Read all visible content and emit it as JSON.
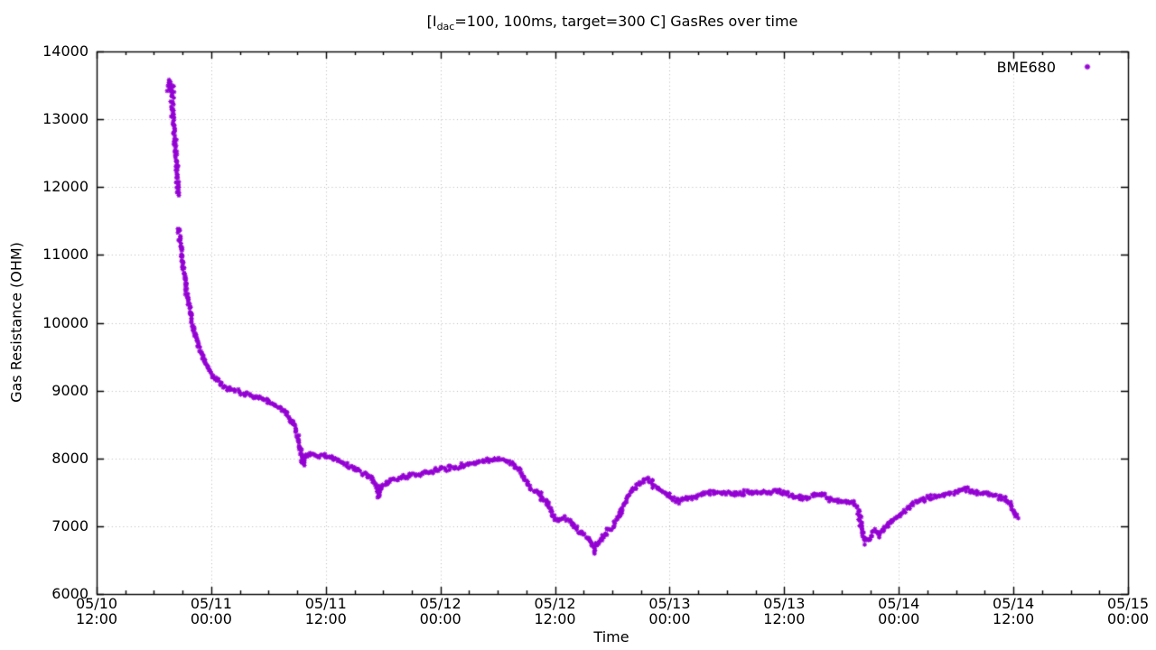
{
  "title": {
    "part1": "[I",
    "subscript": "dac",
    "part2": "=100, 100ms, target=300 C] GasRes over time"
  },
  "y_axis": {
    "label": "Gas Resistance (OHM)",
    "tick_labels": [
      "6000",
      "7000",
      "8000",
      "9000",
      "10000",
      "11000",
      "12000",
      "13000",
      "14000"
    ]
  },
  "x_axis": {
    "label": "Time",
    "tick_labels": [
      {
        "date": "05/10",
        "time": "12:00"
      },
      {
        "date": "05/11",
        "time": "00:00"
      },
      {
        "date": "05/11",
        "time": "12:00"
      },
      {
        "date": "05/12",
        "time": "00:00"
      },
      {
        "date": "05/12",
        "time": "12:00"
      },
      {
        "date": "05/13",
        "time": "00:00"
      },
      {
        "date": "05/13",
        "time": "12:00"
      },
      {
        "date": "05/14",
        "time": "00:00"
      },
      {
        "date": "05/14",
        "time": "12:00"
      },
      {
        "date": "05/15",
        "time": "00:00"
      }
    ]
  },
  "legend": {
    "label": "BME680",
    "marker": "asterisk-icon",
    "color": "#9400D3",
    "position": "top-right"
  },
  "chart_data": {
    "type": "scatter",
    "title": "[I_dac=100, 100ms, target=300 C] GasRes over time",
    "xlabel": "Time",
    "ylabel": "Gas Resistance (OHM)",
    "ylim": [
      6000,
      14000
    ],
    "ytick_step": 1000,
    "x_hours_span": 108,
    "x_start_label": "05/10 12:00",
    "x_end_label": "05/15 00:00",
    "x_major_tick_hours": 12,
    "x_minor_tick_hours": 3,
    "grid": "dotted",
    "points_format": [
      "hours_since_05/10_12:00",
      "gas_resistance_ohm"
    ],
    "scatter_band_ohm": 35,
    "series": [
      {
        "name": "BME680",
        "color": "#9400D3",
        "marker": "asterisk",
        "burn_in_cluster": [
          [
            7.5,
            13420
          ],
          [
            7.55,
            13500
          ],
          [
            7.58,
            13560
          ],
          [
            7.62,
            13450
          ],
          [
            7.65,
            13520
          ],
          [
            7.68,
            13570
          ],
          [
            7.7,
            13480
          ],
          [
            7.73,
            13540
          ],
          [
            7.76,
            13430
          ],
          [
            7.79,
            13500
          ],
          [
            7.82,
            13560
          ],
          [
            7.85,
            13390
          ],
          [
            7.88,
            13460
          ],
          [
            7.9,
            13530
          ],
          [
            7.93,
            13350
          ],
          [
            7.96,
            13420
          ],
          [
            7.99,
            13480
          ],
          [
            8.02,
            13330
          ],
          [
            8.05,
            13390
          ],
          [
            8.1,
            13310
          ],
          [
            7.6,
            13480
          ],
          [
            7.72,
            13500
          ],
          [
            7.8,
            13450
          ],
          [
            7.9,
            13400
          ],
          [
            8.0,
            13370
          ]
        ],
        "segments": [
          [
            [
              7.85,
              13280
            ],
            [
              7.95,
              13130
            ],
            [
              8.05,
              12960
            ],
            [
              8.15,
              12790
            ],
            [
              8.25,
              12600
            ],
            [
              8.32,
              12430
            ],
            [
              8.4,
              12230
            ],
            [
              8.46,
              12040
            ],
            [
              8.52,
              11870
            ]
          ],
          [
            [
              8.6,
              11390
            ],
            [
              8.75,
              11180
            ],
            [
              9.0,
              10900
            ],
            [
              9.25,
              10650
            ],
            [
              9.45,
              10470
            ],
            [
              9.7,
              10250
            ],
            [
              10.0,
              10030
            ],
            [
              10.35,
              9800
            ],
            [
              10.7,
              9660
            ],
            [
              11.0,
              9550
            ],
            [
              11.2,
              9475
            ],
            [
              11.5,
              9390
            ],
            [
              11.75,
              9320
            ],
            [
              12.1,
              9240
            ],
            [
              12.6,
              9150
            ],
            [
              13.1,
              9090
            ],
            [
              13.5,
              9050
            ],
            [
              14.5,
              8995
            ],
            [
              15.4,
              8950
            ],
            [
              16.6,
              8905
            ],
            [
              17.6,
              8865
            ],
            [
              18.5,
              8800
            ],
            [
              19.2,
              8740
            ],
            [
              19.8,
              8675
            ],
            [
              20.3,
              8590
            ],
            [
              20.7,
              8500
            ],
            [
              21.0,
              8330
            ],
            [
              21.2,
              8240
            ],
            [
              21.35,
              8130
            ],
            [
              21.55,
              7950
            ],
            [
              21.7,
              7905
            ],
            [
              21.85,
              8030
            ],
            [
              22.3,
              8060
            ],
            [
              23.2,
              8050
            ],
            [
              24.0,
              8040
            ],
            [
              24.6,
              8010
            ],
            [
              25.2,
              7970
            ],
            [
              25.9,
              7930
            ],
            [
              26.7,
              7880
            ],
            [
              27.5,
              7810
            ],
            [
              28.3,
              7750
            ],
            [
              29.0,
              7700
            ],
            [
              29.3,
              7570
            ],
            [
              29.55,
              7450
            ],
            [
              29.8,
              7590
            ],
            [
              30.6,
              7665
            ],
            [
              31.5,
              7700
            ],
            [
              32.4,
              7730
            ],
            [
              34.0,
              7770
            ],
            [
              35.6,
              7820
            ],
            [
              37.2,
              7865
            ],
            [
              38.8,
              7905
            ],
            [
              40.0,
              7945
            ],
            [
              41.0,
              7975
            ],
            [
              42.1,
              7985
            ],
            [
              42.8,
              7975
            ],
            [
              43.3,
              7945
            ],
            [
              43.8,
              7880
            ],
            [
              44.3,
              7825
            ],
            [
              44.6,
              7760
            ],
            [
              44.9,
              7680
            ],
            [
              45.2,
              7590
            ],
            [
              45.7,
              7520
            ],
            [
              46.3,
              7495
            ],
            [
              46.6,
              7425
            ],
            [
              46.9,
              7375
            ],
            [
              47.3,
              7335
            ],
            [
              47.6,
              7215
            ],
            [
              47.9,
              7120
            ],
            [
              48.3,
              7095
            ],
            [
              48.9,
              7120
            ],
            [
              49.5,
              7080
            ],
            [
              50.0,
              7000
            ],
            [
              50.6,
              6935
            ],
            [
              51.4,
              6840
            ],
            [
              51.8,
              6745
            ],
            [
              52.1,
              6680
            ],
            [
              52.5,
              6760
            ],
            [
              53.1,
              6855
            ],
            [
              53.6,
              6945
            ],
            [
              54.2,
              7025
            ],
            [
              54.8,
              7175
            ],
            [
              55.1,
              7280
            ],
            [
              55.6,
              7415
            ],
            [
              56.1,
              7535
            ],
            [
              56.6,
              7615
            ],
            [
              57.2,
              7665
            ],
            [
              57.7,
              7680
            ],
            [
              58.2,
              7640
            ],
            [
              58.7,
              7575
            ],
            [
              59.4,
              7495
            ],
            [
              60.0,
              7440
            ],
            [
              60.6,
              7400
            ],
            [
              61.1,
              7375
            ],
            [
              61.6,
              7400
            ],
            [
              62.2,
              7425
            ],
            [
              62.9,
              7455
            ],
            [
              63.6,
              7480
            ],
            [
              64.6,
              7495
            ],
            [
              65.5,
              7495
            ],
            [
              66.5,
              7480
            ],
            [
              67.4,
              7480
            ],
            [
              68.4,
              7495
            ],
            [
              69.3,
              7495
            ],
            [
              70.3,
              7505
            ],
            [
              71.0,
              7520
            ],
            [
              71.5,
              7505
            ],
            [
              72.2,
              7480
            ],
            [
              72.9,
              7440
            ],
            [
              73.6,
              7415
            ],
            [
              74.3,
              7425
            ],
            [
              75.0,
              7440
            ],
            [
              75.7,
              7465
            ],
            [
              76.2,
              7455
            ],
            [
              76.6,
              7400
            ],
            [
              77.2,
              7385
            ],
            [
              77.8,
              7375
            ],
            [
              78.5,
              7360
            ],
            [
              79.1,
              7345
            ],
            [
              79.5,
              7305
            ],
            [
              79.8,
              7240
            ],
            [
              80.0,
              7040
            ],
            [
              80.2,
              6865
            ],
            [
              80.5,
              6785
            ],
            [
              80.9,
              6800
            ],
            [
              81.2,
              6880
            ],
            [
              81.6,
              6935
            ],
            [
              82.0,
              6865
            ],
            [
              82.4,
              6935
            ],
            [
              82.8,
              7025
            ],
            [
              83.5,
              7095
            ],
            [
              84.2,
              7160
            ],
            [
              84.8,
              7265
            ],
            [
              85.6,
              7345
            ],
            [
              86.3,
              7385
            ],
            [
              87.1,
              7415
            ],
            [
              87.9,
              7425
            ],
            [
              88.6,
              7465
            ],
            [
              89.4,
              7495
            ],
            [
              90.1,
              7505
            ],
            [
              90.9,
              7560
            ],
            [
              91.4,
              7535
            ],
            [
              92.0,
              7495
            ],
            [
              92.8,
              7480
            ],
            [
              93.5,
              7465
            ],
            [
              94.3,
              7440
            ],
            [
              95.0,
              7415
            ],
            [
              95.6,
              7360
            ],
            [
              95.9,
              7280
            ],
            [
              96.2,
              7175
            ],
            [
              96.5,
              7130
            ]
          ]
        ],
        "noise_spikes": [
          [
            29.5,
            7420
          ],
          [
            29.6,
            7435
          ],
          [
            52.05,
            6640
          ],
          [
            52.12,
            6610
          ],
          [
            52.2,
            6655
          ],
          [
            80.45,
            6755
          ],
          [
            96.5,
            7110
          ]
        ]
      }
    ],
    "legend_position": "top-right"
  }
}
